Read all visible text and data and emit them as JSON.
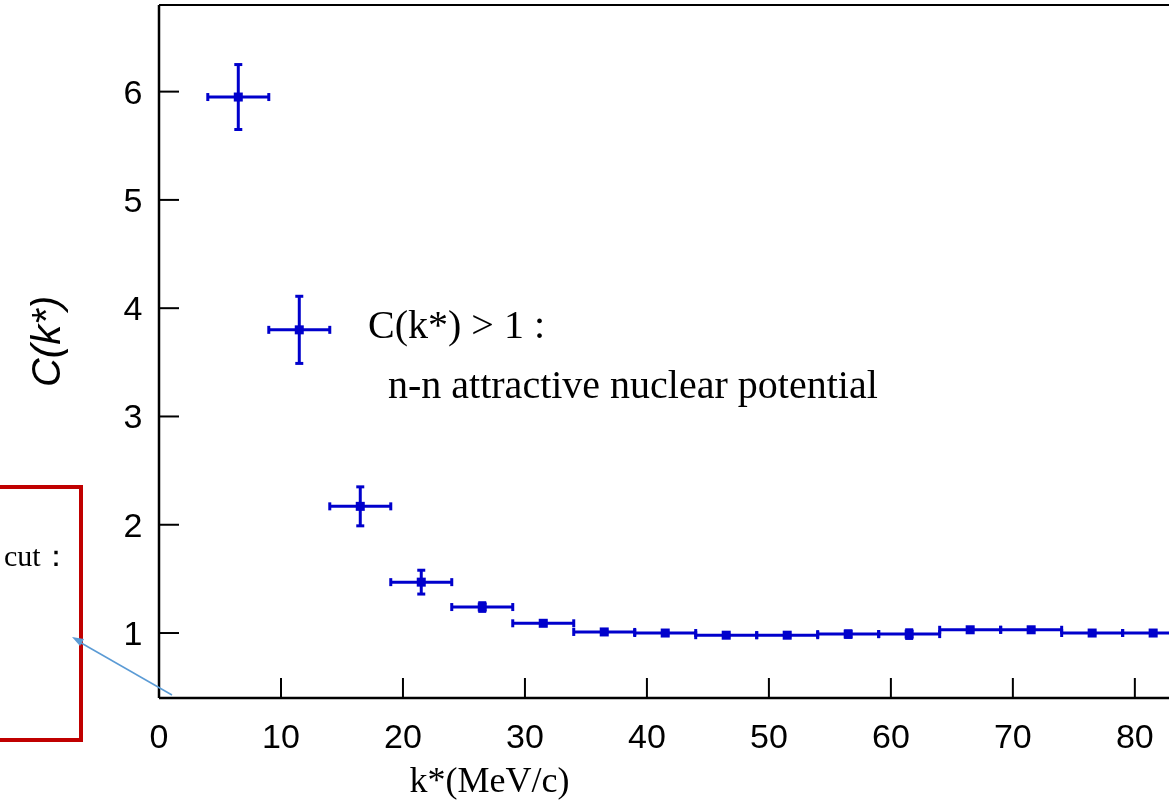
{
  "chart_data": {
    "type": "scatter",
    "xlabel": "k*(MeV/c)",
    "ylabel": "C(k*)",
    "marker": "square",
    "color": "#0000cc",
    "x": [
      6.5,
      11.5,
      16.5,
      21.5,
      26.5,
      31.5,
      36.5,
      41.5,
      46.5,
      51.5,
      56.5,
      61.5,
      66.5,
      71.5,
      76.5,
      81.5
    ],
    "values": [
      5.95,
      3.8,
      2.17,
      1.47,
      1.24,
      1.09,
      1.01,
      1.0,
      0.98,
      0.98,
      0.99,
      0.99,
      1.03,
      1.03,
      1.0,
      1.0
    ],
    "errors": [
      0.3,
      0.31,
      0.18,
      0.11,
      0.04,
      0.02,
      0.01,
      0.01,
      0.01,
      0.01,
      0.03,
      0.04,
      0.01,
      0.01,
      0.01,
      0.02
    ],
    "xerrors": [
      2.5,
      2.5,
      2.5,
      2.5,
      2.5,
      2.5,
      2.5,
      2.5,
      2.5,
      2.5,
      2.5,
      2.5,
      2.5,
      2.5,
      2.5,
      2.5
    ],
    "xlim": [
      0,
      82.8
    ],
    "ylim": [
      0.4,
      6.8
    ],
    "xticks": [
      0,
      10,
      20,
      30,
      40,
      50,
      60,
      70,
      80
    ],
    "yticks": [
      1,
      2,
      3,
      4,
      5,
      6
    ],
    "annotations": [
      "C(k*) > 1 :",
      "n-n attractive nuclear potential",
      "cut："
    ]
  }
}
